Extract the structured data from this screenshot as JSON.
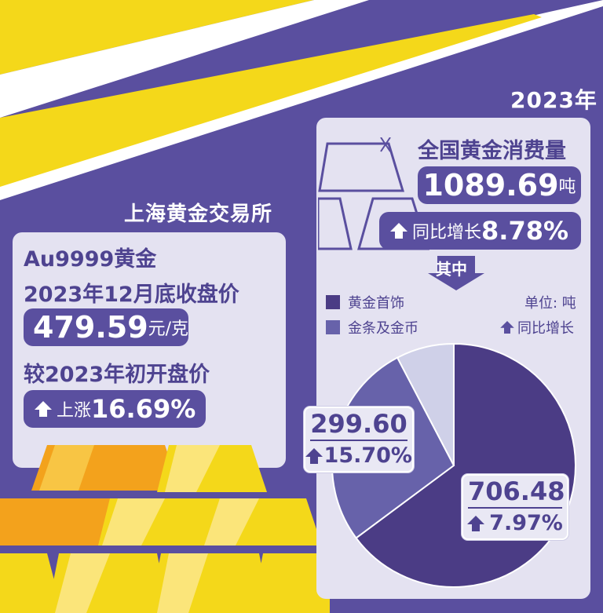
{
  "colors": {
    "background": "#5a4f9f",
    "panel": "#e4e2f1",
    "gold": "#f4d81a",
    "jewelry": "#4b3c85",
    "bars_coins": "#6762aa",
    "other": "#cfd0e8"
  },
  "left": {
    "section_title": "上海黄金交易所",
    "line1": "Au9999黄金",
    "line2": "2023年12月底收盘价",
    "price_value": "479.59",
    "price_unit": "元/克",
    "line3": "较2023年初开盘价",
    "rise_label": "上涨",
    "rise_value": "16.69%"
  },
  "right": {
    "year": "2023年",
    "title": "全国黄金消费量",
    "total_value": "1089.69",
    "total_unit": "吨",
    "yoy_label": "同比增长",
    "yoy_value": "8.78%",
    "among": "其中",
    "unit_note": "单位: 吨",
    "growth_legend": "同比增长"
  },
  "chart_data": {
    "type": "pie",
    "unit": "吨",
    "total": 1089.69,
    "legend": [
      "黄金首饰",
      "金条及金币"
    ],
    "slices": [
      {
        "name": "黄金首饰",
        "value": 706.48,
        "value_label": "706.48",
        "growth": "7.97%",
        "color": "#4b3c85"
      },
      {
        "name": "金条及金币",
        "value": 299.6,
        "value_label": "299.60",
        "growth": "15.70%",
        "color": "#6762aa"
      },
      {
        "value": 83.61,
        "color": "#cfd0e8"
      }
    ],
    "start": "top",
    "direction": "clockwise"
  }
}
